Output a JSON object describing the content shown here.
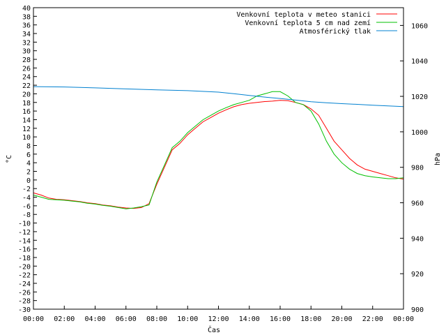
{
  "chart_data": {
    "type": "line",
    "xlabel": "Čas",
    "ylabel": "°C",
    "y2label": "hPa",
    "x_ticks": [
      "00:00",
      "02:00",
      "04:00",
      "06:00",
      "08:00",
      "10:00",
      "12:00",
      "14:00",
      "16:00",
      "18:00",
      "20:00",
      "22:00",
      "00:00"
    ],
    "x_range_hours": [
      0,
      24
    ],
    "ylim": [
      -30,
      40
    ],
    "y_ticks": [
      40,
      38,
      36,
      34,
      32,
      30,
      28,
      26,
      24,
      22,
      20,
      18,
      16,
      14,
      12,
      10,
      8,
      6,
      4,
      2,
      0,
      -2,
      -4,
      -6,
      -8,
      -10,
      -12,
      -14,
      -16,
      -18,
      -20,
      -22,
      -24,
      -26,
      -28,
      -30
    ],
    "y2lim": [
      900,
      1070
    ],
    "y2_ticks": [
      1060,
      1040,
      1020,
      1000,
      980,
      960,
      940,
      920,
      900
    ],
    "grid": false,
    "legend_position": "top-right",
    "series": [
      {
        "name": "Venkovní teplota v meteo stanici",
        "color": "#ff0000",
        "axis": "left",
        "x": [
          0,
          0.5,
          1,
          1.5,
          2,
          2.5,
          3,
          3.5,
          4,
          4.5,
          5,
          5.5,
          6,
          6.5,
          7,
          7.5,
          8,
          8.5,
          9,
          9.5,
          10,
          10.5,
          11,
          11.5,
          12,
          12.5,
          13,
          13.5,
          14,
          14.5,
          15,
          15.5,
          16,
          16.5,
          17,
          17.5,
          18,
          18.5,
          19,
          19.5,
          20,
          20.5,
          21,
          21.5,
          22,
          22.5,
          23,
          23.5,
          24
        ],
        "values": [
          -3,
          -3.5,
          -4.2,
          -4.5,
          -4.6,
          -4.8,
          -5,
          -5.3,
          -5.5,
          -5.8,
          -6,
          -6.3,
          -6.5,
          -6.6,
          -6.4,
          -5.5,
          -1,
          3,
          7,
          8.5,
          10.5,
          12,
          13.5,
          14.5,
          15.5,
          16.3,
          17,
          17.5,
          17.8,
          18,
          18.2,
          18.3,
          18.5,
          18.4,
          18,
          17.5,
          16.5,
          15,
          12,
          9,
          7,
          5,
          3.5,
          2.5,
          2,
          1.5,
          1,
          0.5,
          0.2
        ]
      },
      {
        "name": "Venkovní teplota 5 cm nad zemí",
        "color": "#00c000",
        "axis": "left",
        "x": [
          0,
          0.5,
          1,
          1.5,
          2,
          2.5,
          3,
          3.5,
          4,
          4.5,
          5,
          5.5,
          6,
          6.5,
          7,
          7.5,
          8,
          8.5,
          9,
          9.5,
          10,
          10.5,
          11,
          11.5,
          12,
          12.5,
          13,
          13.5,
          14,
          14.5,
          15,
          15.5,
          16,
          16.5,
          17,
          17.5,
          18,
          18.5,
          19,
          19.5,
          20,
          20.5,
          21,
          21.5,
          22,
          22.5,
          23,
          23.5,
          24
        ],
        "values": [
          -3.5,
          -4,
          -4.5,
          -4.6,
          -4.7,
          -4.9,
          -5.1,
          -5.4,
          -5.6,
          -5.9,
          -6.1,
          -6.4,
          -6.7,
          -6.5,
          -6.2,
          -5.8,
          -0.5,
          3.5,
          7.5,
          9,
          11,
          12.5,
          14,
          15,
          16,
          16.8,
          17.5,
          18,
          18.5,
          19.5,
          20,
          20.5,
          20.5,
          19.5,
          18,
          17.5,
          16,
          13,
          9,
          6,
          4,
          2.5,
          1.5,
          1,
          0.7,
          0.5,
          0.3,
          0.3,
          0.5
        ]
      },
      {
        "name": "Atmosférický tlak",
        "color": "#0080d0",
        "axis": "right",
        "x": [
          0,
          2,
          4,
          6,
          8,
          10,
          12,
          13,
          14,
          15,
          16,
          17,
          18,
          19,
          20,
          21,
          22,
          23,
          24
        ],
        "values": [
          1025.5,
          1025.3,
          1024.8,
          1024.2,
          1023.7,
          1023.2,
          1022.4,
          1021.5,
          1020.5,
          1019.6,
          1018.8,
          1017.9,
          1017.0,
          1016.4,
          1015.9,
          1015.5,
          1015.0,
          1014.6,
          1014.2
        ]
      }
    ]
  }
}
